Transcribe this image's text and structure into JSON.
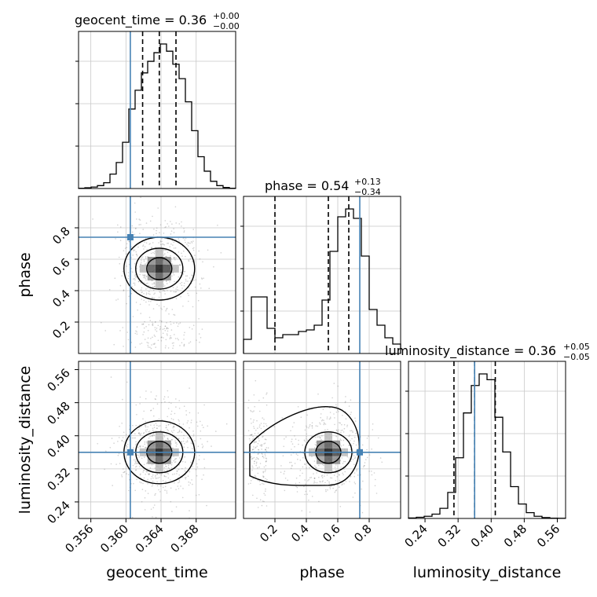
{
  "chart_data": {
    "type": "corner",
    "parameters": [
      "geocent_time",
      "phase",
      "luminosity_distance"
    ],
    "axis_labels": {
      "geocent_time": "geocent_time",
      "phase": "phase",
      "luminosity_distance": "luminosity_distance"
    },
    "ranges": {
      "geocent_time": [
        0.3546,
        0.3725
      ],
      "phase": [
        0.0,
        1.0
      ],
      "luminosity_distance": [
        0.2,
        0.58
      ]
    },
    "ticks": {
      "geocent_time": [
        "0.356",
        "0.360",
        "0.364",
        "0.368"
      ],
      "phase": [
        "0.2",
        "0.4",
        "0.6",
        "0.8"
      ],
      "luminosity_distance": [
        "0.24",
        "0.32",
        "0.40",
        "0.48",
        "0.56"
      ]
    },
    "truths": {
      "geocent_time": 0.3605,
      "phase": 0.74,
      "luminosity_distance": 0.36
    },
    "titles": {
      "geocent_time": {
        "name": "geocent_time",
        "median": "0.36",
        "plus": "+0.00",
        "minus": "−0.00"
      },
      "phase": {
        "name": "phase",
        "median": "0.54",
        "plus": "+0.13",
        "minus": "−0.34"
      },
      "luminosity_distance": {
        "name": "luminosity_distance",
        "median": "0.36",
        "plus": "+0.05",
        "minus": "−0.05"
      }
    },
    "quantiles": {
      "geocent_time": [
        0.3619,
        0.3638,
        0.3657
      ],
      "phase": [
        0.2,
        0.54,
        0.67
      ],
      "luminosity_distance": [
        0.31,
        0.36,
        0.41
      ]
    },
    "histograms": {
      "geocent_time": [
        0.2,
        0.5,
        1,
        2,
        4,
        10,
        18,
        32,
        55,
        68,
        80,
        88,
        94,
        100,
        95,
        86,
        76,
        60,
        40,
        22,
        12,
        5,
        2,
        0.7,
        0.2
      ],
      "phase": [
        9,
        36,
        36,
        16,
        10,
        12,
        12,
        14,
        15,
        18,
        34,
        65,
        87,
        92,
        86,
        62,
        28,
        18,
        10,
        6
      ],
      "luminosity_distance": [
        0.3,
        0.8,
        1.5,
        3,
        7,
        18,
        42,
        73,
        92,
        100,
        96,
        70,
        46,
        22,
        10,
        4,
        1.5,
        0.6,
        0.2,
        0.1
      ]
    },
    "grid": true
  }
}
